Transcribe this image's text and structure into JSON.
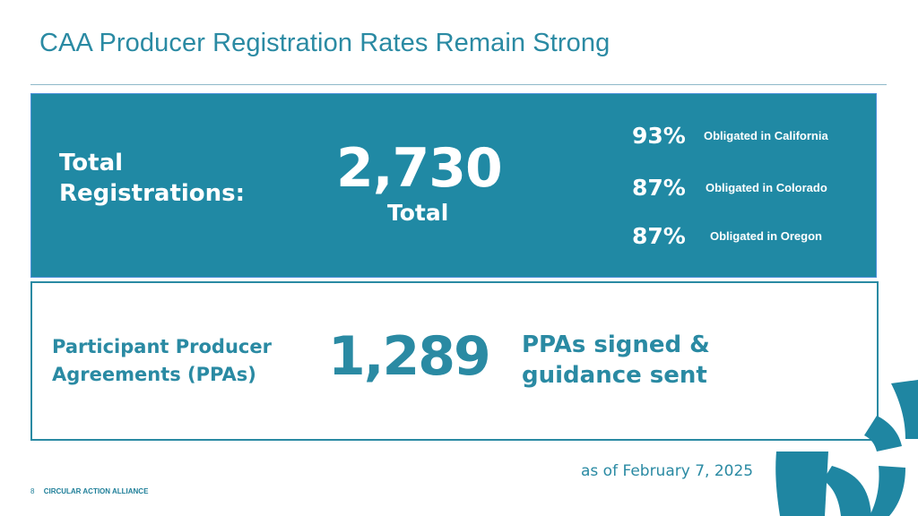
{
  "slide": {
    "title": "CAA Producer Registration Rates Remain Strong",
    "registrations": {
      "label_line1": "Total",
      "label_line2": "Registrations:",
      "number": "2,730",
      "unit": "Total",
      "states": [
        {
          "pct": "93%",
          "text": "Obligated in California"
        },
        {
          "pct": "87%",
          "text": "Obligated in Colorado"
        },
        {
          "pct": "87%",
          "text": "Obligated in Oregon"
        }
      ]
    },
    "ppa": {
      "label_line1": "Participant Producer",
      "label_line2": "Agreements (PPAs)",
      "number": "1,289",
      "desc_line1": "PPAs signed &",
      "desc_line2": "guidance sent"
    },
    "as_of": "as of February 7, 2025",
    "footer": {
      "page": "8",
      "brand": "CIRCULAR ACTION ALLIANCE"
    },
    "colors": {
      "primary": "#2a8aa3",
      "panel": "#2089a4",
      "text_on_panel": "#ffffff"
    }
  }
}
